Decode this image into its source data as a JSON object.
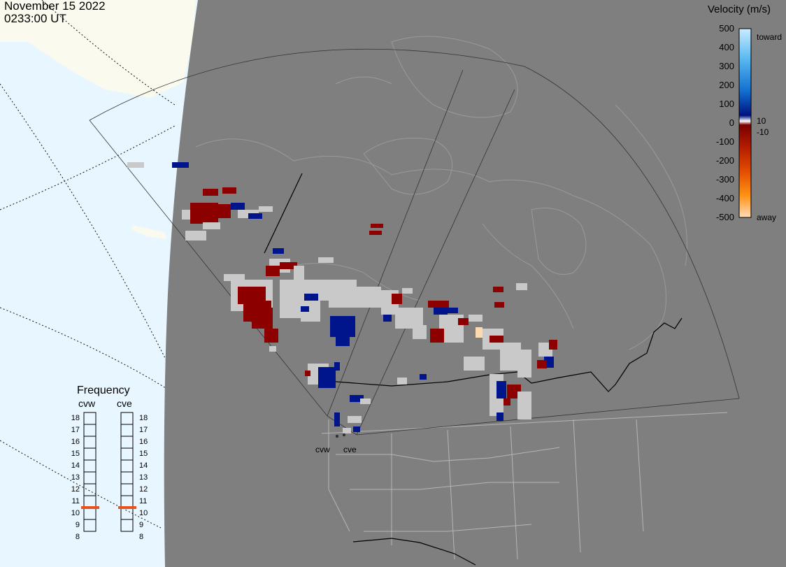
{
  "header": {
    "date": "November 15 2022",
    "time": "0233:00 UT"
  },
  "legend": {
    "title": "Velocity (m/s)",
    "ticks": [
      "500",
      "400",
      "300",
      "200",
      "100",
      "0",
      "-100",
      "-200",
      "-300",
      "-400",
      "-500"
    ],
    "note_10": "10",
    "note_neg10": "-10",
    "toward_label": "toward",
    "away_label": "away"
  },
  "frequency": {
    "title": "Frequency",
    "columns": [
      "cvw",
      "cve"
    ],
    "levels": [
      "18",
      "17",
      "16",
      "15",
      "14",
      "13",
      "12",
      "11",
      "10",
      "9",
      "8"
    ],
    "cvw_value_mhz": 10.5,
    "cve_value_mhz": 10.5,
    "indicator_color": "#e8501e"
  },
  "stations": {
    "west": "cvw",
    "east": "cve"
  },
  "colors": {
    "ocean": "#e8f6ff",
    "land_day": "#fbfaee",
    "night_shade": "#7f7f7f",
    "low_velocity": "#c9c9c9",
    "toward": "#00148c",
    "away": "#8c0000",
    "away_strong": "#fcd9b1"
  }
}
